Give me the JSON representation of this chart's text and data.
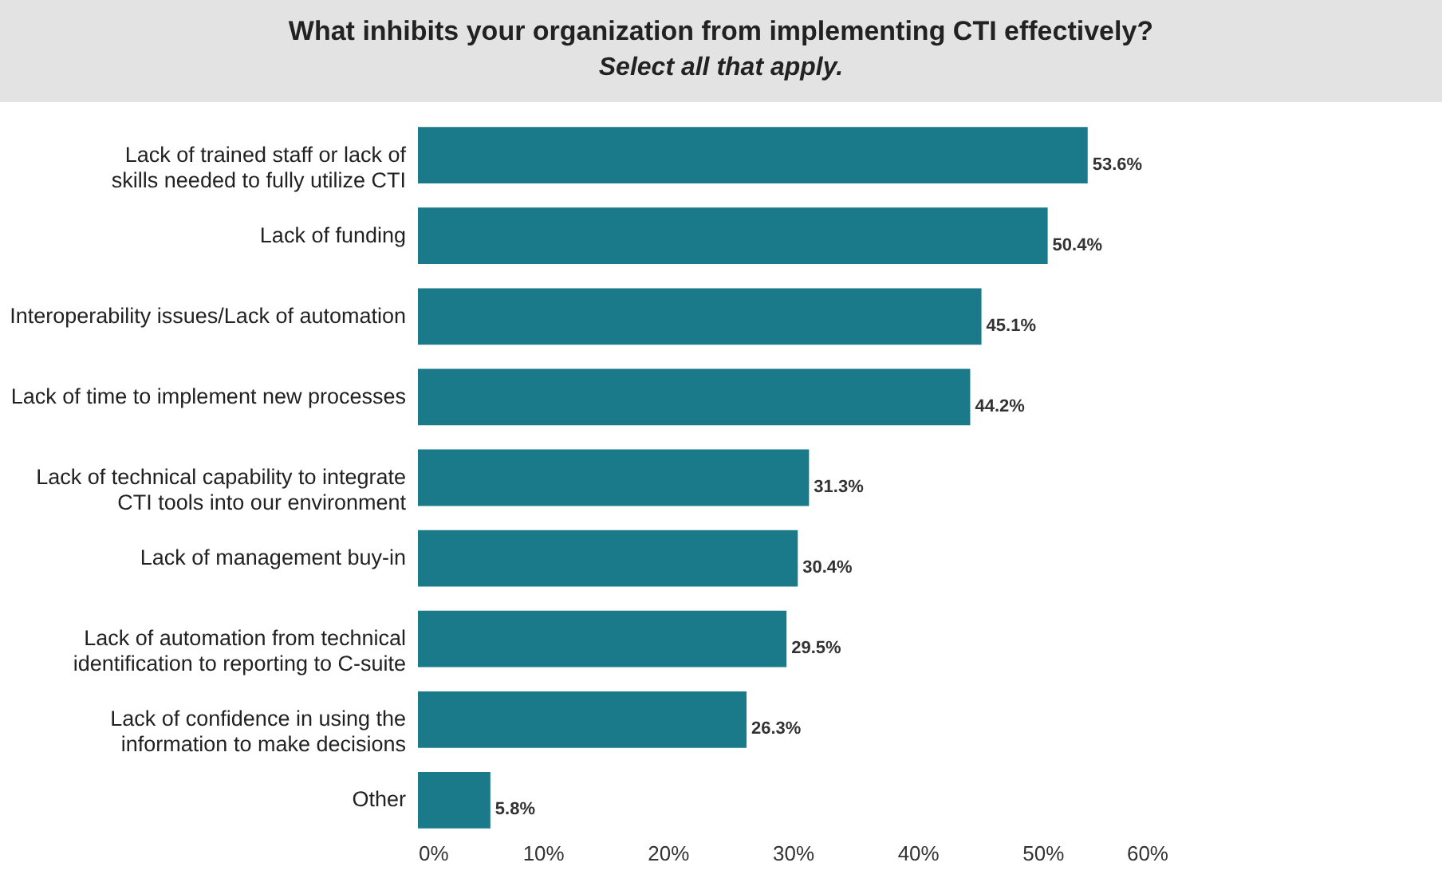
{
  "chart_data": {
    "type": "bar",
    "orientation": "horizontal",
    "title": "What inhibits your organization from implementing CTI effectively?",
    "subtitle": "Select all that apply.",
    "categories": [
      "Lack of trained staff or lack of\nskills needed to fully utilize CTI",
      "Lack of funding",
      "Interoperability issues/Lack of automation",
      "Lack of time to implement new processes",
      "Lack of technical capability to integrate\nCTI tools into our environment",
      "Lack of management buy-in",
      "Lack of automation from technical\nidentification to reporting to C-suite",
      "Lack of confidence in using the\ninformation to make decisions",
      "Other"
    ],
    "values": [
      53.6,
      50.4,
      45.1,
      44.2,
      31.3,
      30.4,
      29.5,
      26.3,
      5.8
    ],
    "value_labels": [
      "53.6%",
      "50.4%",
      "45.1%",
      "44.2%",
      "31.3%",
      "30.4%",
      "29.5%",
      "26.3%",
      "5.8%"
    ],
    "color": "#1b7a8a",
    "xlim": [
      0,
      60
    ],
    "xticks": [
      {
        "value": 0,
        "label": "0%"
      },
      {
        "value": 10,
        "label": "10%"
      },
      {
        "value": 20,
        "label": "20%"
      },
      {
        "value": 30,
        "label": "30%"
      },
      {
        "value": 40,
        "label": "40%"
      },
      {
        "value": 50,
        "label": "50%"
      },
      {
        "value": 60,
        "label": "60%"
      }
    ],
    "grid": false
  }
}
